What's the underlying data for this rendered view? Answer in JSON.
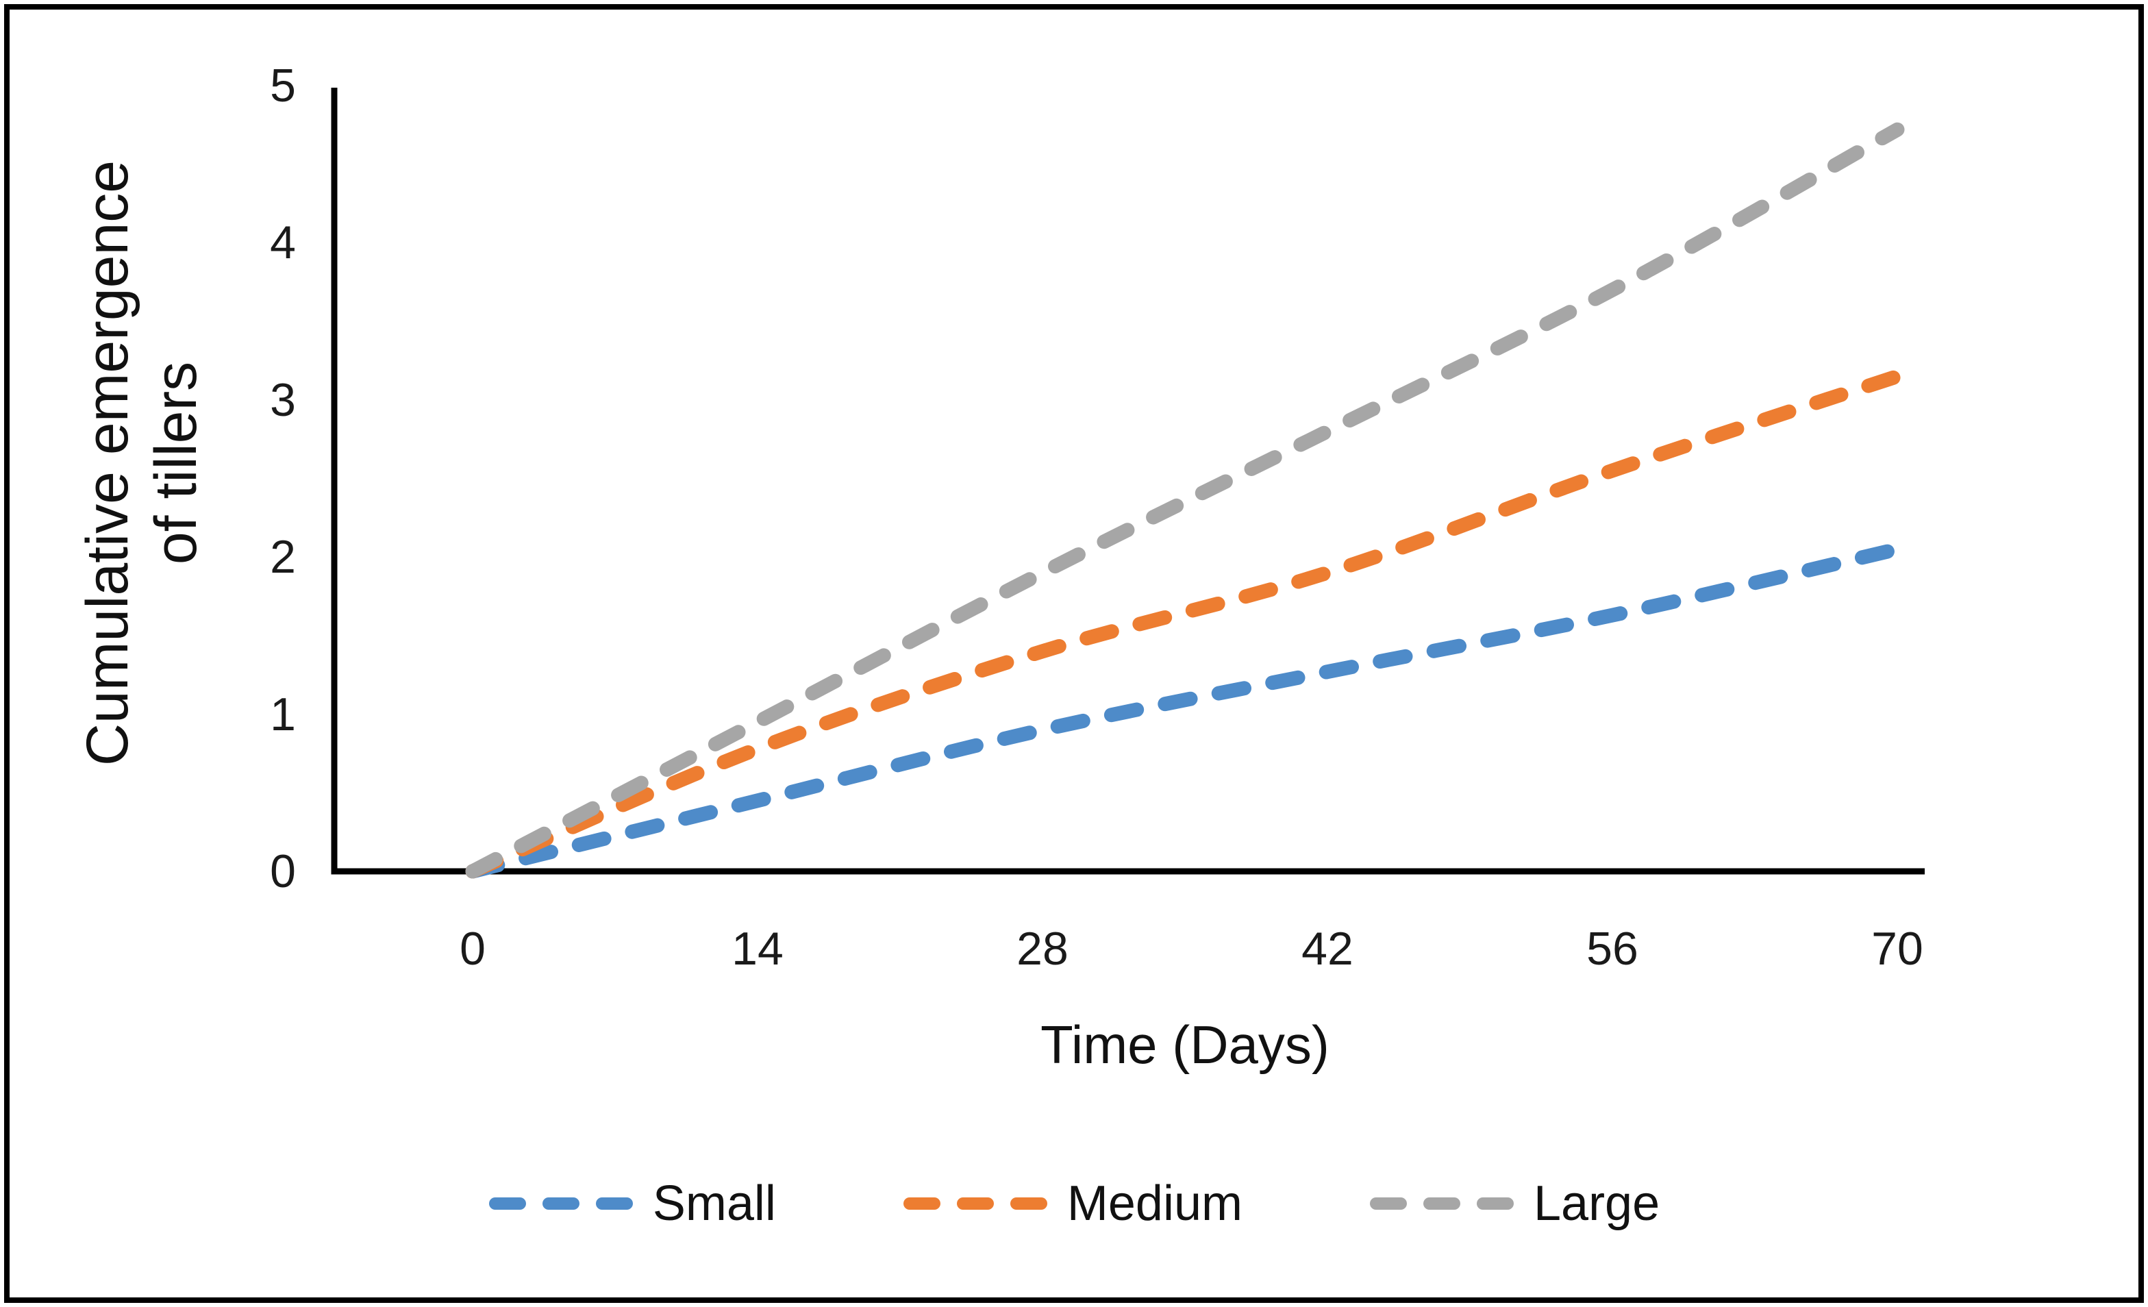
{
  "chart_data": {
    "type": "line",
    "title": "",
    "xlabel": "Time (Days)",
    "ylabel": "Cumulative emergence of tillers",
    "ylabel_lines": [
      "Cumulative emergence",
      "of tillers"
    ],
    "x": [
      0,
      14,
      28,
      42,
      56,
      70
    ],
    "x_tick_labels": [
      "0",
      "14",
      "28",
      "42",
      "56",
      "70"
    ],
    "y_tick_labels": [
      "0",
      "1",
      "2",
      "3",
      "4",
      "5"
    ],
    "xlim": [
      0,
      71.5
    ],
    "ylim": [
      0,
      5
    ],
    "grid": false,
    "line_style": "dashed",
    "legend_position": "bottom-center",
    "axis_color": "#000000",
    "frame_color": "#000000",
    "background_color": "#ffffff",
    "series": [
      {
        "name": "Small",
        "color": "#4E8BC9",
        "values": [
          0,
          0.45,
          0.9,
          1.27,
          1.63,
          2.05
        ]
      },
      {
        "name": "Medium",
        "color": "#ED7D31",
        "values": [
          0,
          0.78,
          1.4,
          1.9,
          2.55,
          3.15
        ]
      },
      {
        "name": "Large",
        "color": "#A6A6A6",
        "values": [
          0,
          0.95,
          1.9,
          2.8,
          3.7,
          4.72
        ]
      }
    ]
  }
}
